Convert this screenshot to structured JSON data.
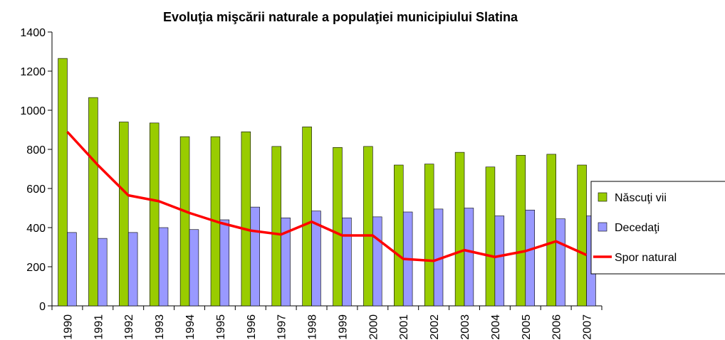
{
  "chart_data": {
    "type": "bar-line",
    "title": "Evoluţia mişcării naturale a populaţiei municipiului Slatina",
    "categories": [
      "1990",
      "1991",
      "1992",
      "1993",
      "1994",
      "1995",
      "1996",
      "1997",
      "1998",
      "1999",
      "2000",
      "2001",
      "2002",
      "2003",
      "2004",
      "2005",
      "2006",
      "2007"
    ],
    "series": [
      {
        "name": "Născuţi vii",
        "type": "bar",
        "color": "#99cc00",
        "values": [
          1265,
          1065,
          940,
          935,
          865,
          865,
          890,
          815,
          915,
          810,
          815,
          720,
          725,
          785,
          710,
          770,
          775,
          720
        ]
      },
      {
        "name": "Decedaţi",
        "type": "bar",
        "color": "#9999ff",
        "values": [
          375,
          345,
          375,
          400,
          390,
          440,
          505,
          450,
          485,
          450,
          455,
          480,
          495,
          500,
          460,
          490,
          445,
          460
        ]
      },
      {
        "name": "Spor natural",
        "type": "line",
        "color": "#ff0000",
        "values": [
          890,
          720,
          565,
          535,
          475,
          425,
          385,
          365,
          430,
          360,
          360,
          240,
          230,
          285,
          250,
          280,
          330,
          260
        ]
      }
    ],
    "ylim": [
      0,
      1400
    ],
    "yticks": [
      0,
      200,
      400,
      600,
      800,
      1000,
      1200,
      1400
    ],
    "legend": "right"
  }
}
